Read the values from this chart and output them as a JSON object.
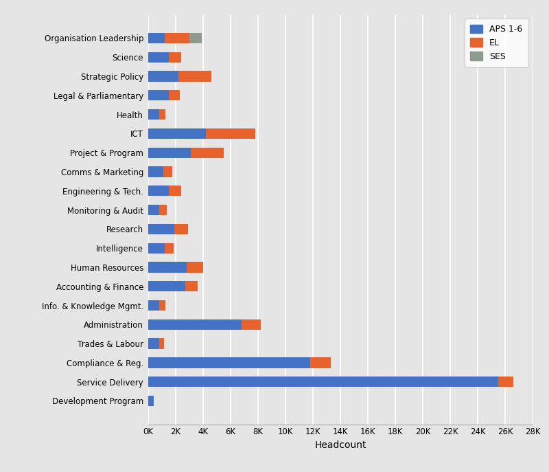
{
  "categories": [
    "Organisation Leadership",
    "Science",
    "Strategic Policy",
    "Legal & Parliamentary",
    "Health",
    "ICT",
    "Project & Program",
    "Comms & Marketing",
    "Engineering & Tech.",
    "Monitoring & Audit",
    "Research",
    "Intelligence",
    "Human Resources",
    "Accounting & Finance",
    "Info. & Knowledge Mgmt.",
    "Administration",
    "Trades & Labour",
    "Compliance & Reg.",
    "Service Delivery",
    "Development Program"
  ],
  "aps16": [
    1200,
    1500,
    2200,
    1500,
    800,
    4200,
    3100,
    1100,
    1500,
    800,
    1900,
    1200,
    2800,
    2700,
    800,
    6800,
    800,
    11800,
    25500,
    400
  ],
  "el": [
    1800,
    900,
    2400,
    800,
    450,
    3600,
    2400,
    650,
    900,
    550,
    1000,
    650,
    1200,
    900,
    450,
    1400,
    350,
    1500,
    1100,
    0
  ],
  "ses": [
    900,
    0,
    0,
    0,
    0,
    0,
    0,
    0,
    0,
    0,
    0,
    0,
    0,
    0,
    0,
    0,
    0,
    0,
    0,
    0
  ],
  "color_aps": "#4472c4",
  "color_el": "#e8622b",
  "color_ses": "#8d9b8c",
  "xlabel": "Headcount",
  "legend_labels": [
    "APS 1-6",
    "EL",
    "SES"
  ],
  "xlim_max": 28000,
  "xtick_step": 2000,
  "bg_color": "#e5e5e5",
  "bar_height": 0.55
}
